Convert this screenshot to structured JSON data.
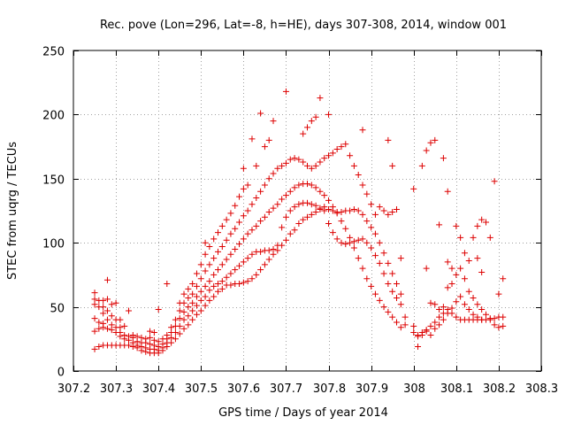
{
  "chart_data": {
    "type": "scatter",
    "title": "Rec. pove (Lon=296, Lat=-8, h=HE), days 307-308, 2014, window 001",
    "xlabel": "GPS time / Days of year 2014",
    "ylabel": "STEC from uqrg / TECUs",
    "xlim": [
      307.2,
      308.3
    ],
    "ylim": [
      0,
      250
    ],
    "xticks": [
      307.2,
      307.3,
      307.4,
      307.5,
      307.6,
      307.7,
      307.8,
      307.9,
      308.0,
      308.1,
      308.2,
      308.3
    ],
    "xtick_labels": [
      "307.2",
      "307.3",
      "307.4",
      "307.5",
      "307.6",
      "307.7",
      "307.8",
      "307.9",
      "308",
      "308.1",
      "308.2",
      "308.3"
    ],
    "yticks": [
      0,
      50,
      100,
      150,
      200,
      250
    ],
    "ytick_labels": [
      "0",
      "50",
      "100",
      "150",
      "200",
      "250"
    ],
    "grid": true,
    "marker": "+",
    "color": "#dd0000",
    "points": [
      [
        307.25,
        17
      ],
      [
        307.25,
        31
      ],
      [
        307.25,
        41
      ],
      [
        307.25,
        52
      ],
      [
        307.25,
        56
      ],
      [
        307.25,
        61
      ],
      [
        307.26,
        19
      ],
      [
        307.26,
        33
      ],
      [
        307.26,
        38
      ],
      [
        307.26,
        50
      ],
      [
        307.26,
        55
      ],
      [
        307.27,
        20
      ],
      [
        307.27,
        34
      ],
      [
        307.27,
        37
      ],
      [
        307.27,
        45
      ],
      [
        307.27,
        50
      ],
      [
        307.27,
        55
      ],
      [
        307.28,
        20
      ],
      [
        307.28,
        33
      ],
      [
        307.28,
        40
      ],
      [
        307.28,
        47
      ],
      [
        307.28,
        56
      ],
      [
        307.28,
        71
      ],
      [
        307.29,
        20
      ],
      [
        307.29,
        32
      ],
      [
        307.29,
        36
      ],
      [
        307.29,
        43
      ],
      [
        307.29,
        52
      ],
      [
        307.3,
        20
      ],
      [
        307.3,
        30
      ],
      [
        307.3,
        34
      ],
      [
        307.3,
        40
      ],
      [
        307.3,
        53
      ],
      [
        307.31,
        20
      ],
      [
        307.31,
        27
      ],
      [
        307.31,
        30
      ],
      [
        307.31,
        34
      ],
      [
        307.31,
        40
      ],
      [
        307.32,
        20
      ],
      [
        307.32,
        25
      ],
      [
        307.32,
        28
      ],
      [
        307.32,
        35
      ],
      [
        307.33,
        20
      ],
      [
        307.33,
        24
      ],
      [
        307.33,
        27
      ],
      [
        307.33,
        47
      ],
      [
        307.34,
        19
      ],
      [
        307.34,
        22
      ],
      [
        307.34,
        26
      ],
      [
        307.34,
        28
      ],
      [
        307.35,
        18
      ],
      [
        307.35,
        20
      ],
      [
        307.35,
        23
      ],
      [
        307.35,
        27
      ],
      [
        307.36,
        16
      ],
      [
        307.36,
        19
      ],
      [
        307.36,
        22
      ],
      [
        307.36,
        26
      ],
      [
        307.37,
        15
      ],
      [
        307.37,
        18
      ],
      [
        307.37,
        22
      ],
      [
        307.37,
        25
      ],
      [
        307.38,
        14
      ],
      [
        307.38,
        17
      ],
      [
        307.38,
        21
      ],
      [
        307.38,
        26
      ],
      [
        307.38,
        31
      ],
      [
        307.39,
        14
      ],
      [
        307.39,
        17
      ],
      [
        307.39,
        20
      ],
      [
        307.39,
        24
      ],
      [
        307.39,
        30
      ],
      [
        307.4,
        14
      ],
      [
        307.4,
        16
      ],
      [
        307.4,
        19
      ],
      [
        307.4,
        23
      ],
      [
        307.4,
        48
      ],
      [
        307.41,
        16
      ],
      [
        307.41,
        18
      ],
      [
        307.41,
        21
      ],
      [
        307.41,
        25
      ],
      [
        307.42,
        19
      ],
      [
        307.42,
        22
      ],
      [
        307.42,
        25
      ],
      [
        307.42,
        28
      ],
      [
        307.42,
        68
      ],
      [
        307.43,
        22
      ],
      [
        307.43,
        26
      ],
      [
        307.43,
        30
      ],
      [
        307.43,
        34
      ],
      [
        307.44,
        25
      ],
      [
        307.44,
        30
      ],
      [
        307.44,
        35
      ],
      [
        307.44,
        40
      ],
      [
        307.45,
        29
      ],
      [
        307.45,
        35
      ],
      [
        307.45,
        41
      ],
      [
        307.45,
        47
      ],
      [
        307.45,
        53
      ],
      [
        307.46,
        33
      ],
      [
        307.46,
        40
      ],
      [
        307.46,
        46
      ],
      [
        307.46,
        53
      ],
      [
        307.46,
        60
      ],
      [
        307.47,
        36
      ],
      [
        307.47,
        43
      ],
      [
        307.47,
        50
      ],
      [
        307.47,
        57
      ],
      [
        307.47,
        64
      ],
      [
        307.48,
        40
      ],
      [
        307.48,
        47
      ],
      [
        307.48,
        53
      ],
      [
        307.48,
        60
      ],
      [
        307.48,
        68
      ],
      [
        307.49,
        44
      ],
      [
        307.49,
        51
      ],
      [
        307.49,
        58
      ],
      [
        307.49,
        66
      ],
      [
        307.49,
        76
      ],
      [
        307.5,
        47
      ],
      [
        307.5,
        55
      ],
      [
        307.5,
        62
      ],
      [
        307.5,
        72
      ],
      [
        307.5,
        83
      ],
      [
        307.51,
        51
      ],
      [
        307.51,
        58
      ],
      [
        307.51,
        66
      ],
      [
        307.51,
        78
      ],
      [
        307.51,
        91
      ],
      [
        307.51,
        100
      ],
      [
        307.52,
        55
      ],
      [
        307.52,
        63
      ],
      [
        307.52,
        70
      ],
      [
        307.52,
        83
      ],
      [
        307.52,
        97
      ],
      [
        307.53,
        58
      ],
      [
        307.53,
        66
      ],
      [
        307.53,
        75
      ],
      [
        307.53,
        88
      ],
      [
        307.53,
        103
      ],
      [
        307.54,
        62
      ],
      [
        307.54,
        68
      ],
      [
        307.54,
        79
      ],
      [
        307.54,
        93
      ],
      [
        307.54,
        108
      ],
      [
        307.55,
        64
      ],
      [
        307.55,
        70
      ],
      [
        307.55,
        83
      ],
      [
        307.55,
        97
      ],
      [
        307.55,
        113
      ],
      [
        307.56,
        67
      ],
      [
        307.56,
        73
      ],
      [
        307.56,
        87
      ],
      [
        307.56,
        102
      ],
      [
        307.56,
        118
      ],
      [
        307.57,
        67
      ],
      [
        307.57,
        76
      ],
      [
        307.57,
        91
      ],
      [
        307.57,
        107
      ],
      [
        307.57,
        123
      ],
      [
        307.58,
        68
      ],
      [
        307.58,
        79
      ],
      [
        307.58,
        95
      ],
      [
        307.58,
        111
      ],
      [
        307.58,
        129
      ],
      [
        307.59,
        68
      ],
      [
        307.59,
        82
      ],
      [
        307.59,
        99
      ],
      [
        307.59,
        116
      ],
      [
        307.59,
        136
      ],
      [
        307.6,
        69
      ],
      [
        307.6,
        85
      ],
      [
        307.6,
        103
      ],
      [
        307.6,
        121
      ],
      [
        307.6,
        142
      ],
      [
        307.6,
        158
      ],
      [
        307.61,
        70
      ],
      [
        307.61,
        88
      ],
      [
        307.61,
        107
      ],
      [
        307.61,
        125
      ],
      [
        307.61,
        145
      ],
      [
        307.62,
        72
      ],
      [
        307.62,
        91
      ],
      [
        307.62,
        110
      ],
      [
        307.62,
        130
      ],
      [
        307.62,
        181
      ],
      [
        307.63,
        75
      ],
      [
        307.63,
        93
      ],
      [
        307.63,
        113
      ],
      [
        307.63,
        135
      ],
      [
        307.63,
        160
      ],
      [
        307.64,
        79
      ],
      [
        307.64,
        93
      ],
      [
        307.64,
        117
      ],
      [
        307.64,
        140
      ],
      [
        307.64,
        201
      ],
      [
        307.65,
        83
      ],
      [
        307.65,
        94
      ],
      [
        307.65,
        120
      ],
      [
        307.65,
        145
      ],
      [
        307.65,
        175
      ],
      [
        307.66,
        87
      ],
      [
        307.66,
        94
      ],
      [
        307.66,
        124
      ],
      [
        307.66,
        150
      ],
      [
        307.66,
        180
      ],
      [
        307.67,
        91
      ],
      [
        307.67,
        95
      ],
      [
        307.67,
        127
      ],
      [
        307.67,
        154
      ],
      [
        307.67,
        195
      ],
      [
        307.68,
        94
      ],
      [
        307.68,
        98
      ],
      [
        307.68,
        130
      ],
      [
        307.68,
        158
      ],
      [
        307.69,
        98
      ],
      [
        307.69,
        112
      ],
      [
        307.69,
        134
      ],
      [
        307.69,
        160
      ],
      [
        307.7,
        102
      ],
      [
        307.7,
        120
      ],
      [
        307.7,
        137
      ],
      [
        307.7,
        162
      ],
      [
        307.7,
        218
      ],
      [
        307.71,
        107
      ],
      [
        307.71,
        125
      ],
      [
        307.71,
        140
      ],
      [
        307.71,
        165
      ],
      [
        307.72,
        110
      ],
      [
        307.72,
        128
      ],
      [
        307.72,
        143
      ],
      [
        307.72,
        166
      ],
      [
        307.73,
        115
      ],
      [
        307.73,
        130
      ],
      [
        307.73,
        145
      ],
      [
        307.73,
        165
      ],
      [
        307.74,
        118
      ],
      [
        307.74,
        131
      ],
      [
        307.74,
        146
      ],
      [
        307.74,
        163
      ],
      [
        307.74,
        185
      ],
      [
        307.75,
        120
      ],
      [
        307.75,
        131
      ],
      [
        307.75,
        146
      ],
      [
        307.75,
        160
      ],
      [
        307.75,
        190
      ],
      [
        307.76,
        122
      ],
      [
        307.76,
        130
      ],
      [
        307.76,
        145
      ],
      [
        307.76,
        158
      ],
      [
        307.76,
        195
      ],
      [
        307.77,
        124
      ],
      [
        307.77,
        129
      ],
      [
        307.77,
        143
      ],
      [
        307.77,
        160
      ],
      [
        307.77,
        198
      ],
      [
        307.78,
        126
      ],
      [
        307.78,
        127
      ],
      [
        307.78,
        140
      ],
      [
        307.78,
        163
      ],
      [
        307.78,
        213
      ],
      [
        307.79,
        128
      ],
      [
        307.79,
        125
      ],
      [
        307.79,
        137
      ],
      [
        307.79,
        166
      ],
      [
        307.8,
        126
      ],
      [
        307.8,
        115
      ],
      [
        307.8,
        133
      ],
      [
        307.8,
        168
      ],
      [
        307.8,
        200
      ],
      [
        307.81,
        125
      ],
      [
        307.81,
        108
      ],
      [
        307.81,
        128
      ],
      [
        307.81,
        170
      ],
      [
        307.82,
        124
      ],
      [
        307.82,
        103
      ],
      [
        307.82,
        123
      ],
      [
        307.82,
        173
      ],
      [
        307.83,
        124
      ],
      [
        307.83,
        100
      ],
      [
        307.83,
        117
      ],
      [
        307.83,
        175
      ],
      [
        307.84,
        125
      ],
      [
        307.84,
        99
      ],
      [
        307.84,
        111
      ],
      [
        307.84,
        177
      ],
      [
        307.85,
        125
      ],
      [
        307.85,
        100
      ],
      [
        307.85,
        104
      ],
      [
        307.85,
        168
      ],
      [
        307.86,
        126
      ],
      [
        307.86,
        101
      ],
      [
        307.86,
        96
      ],
      [
        307.86,
        160
      ],
      [
        307.87,
        125
      ],
      [
        307.87,
        102
      ],
      [
        307.87,
        88
      ],
      [
        307.87,
        153
      ],
      [
        307.88,
        122
      ],
      [
        307.88,
        103
      ],
      [
        307.88,
        80
      ],
      [
        307.88,
        145
      ],
      [
        307.88,
        188
      ],
      [
        307.89,
        117
      ],
      [
        307.89,
        100
      ],
      [
        307.89,
        72
      ],
      [
        307.89,
        138
      ],
      [
        307.9,
        112
      ],
      [
        307.9,
        96
      ],
      [
        307.9,
        66
      ],
      [
        307.9,
        130
      ],
      [
        307.91,
        107
      ],
      [
        307.91,
        90
      ],
      [
        307.91,
        60
      ],
      [
        307.91,
        122
      ],
      [
        307.92,
        100
      ],
      [
        307.92,
        84
      ],
      [
        307.92,
        55
      ],
      [
        307.92,
        128
      ],
      [
        307.93,
        92
      ],
      [
        307.93,
        76
      ],
      [
        307.93,
        50
      ],
      [
        307.93,
        125
      ],
      [
        307.94,
        84
      ],
      [
        307.94,
        68
      ],
      [
        307.94,
        46
      ],
      [
        307.94,
        122
      ],
      [
        307.94,
        180
      ],
      [
        307.95,
        76
      ],
      [
        307.95,
        62
      ],
      [
        307.95,
        42
      ],
      [
        307.95,
        124
      ],
      [
        307.95,
        160
      ],
      [
        307.96,
        68
      ],
      [
        307.96,
        57
      ],
      [
        307.96,
        38
      ],
      [
        307.96,
        126
      ],
      [
        307.97,
        60
      ],
      [
        307.97,
        52
      ],
      [
        307.97,
        34
      ],
      [
        307.97,
        88
      ],
      [
        307.98,
        42
      ],
      [
        307.98,
        36
      ],
      [
        308.0,
        30
      ],
      [
        308.0,
        35
      ],
      [
        308.0,
        142
      ],
      [
        308.01,
        28
      ],
      [
        308.01,
        19
      ],
      [
        308.01,
        27
      ],
      [
        308.02,
        30
      ],
      [
        308.02,
        28
      ],
      [
        308.02,
        160
      ],
      [
        308.03,
        32
      ],
      [
        308.03,
        31
      ],
      [
        308.03,
        80
      ],
      [
        308.03,
        172
      ],
      [
        308.04,
        35
      ],
      [
        308.04,
        28
      ],
      [
        308.04,
        53
      ],
      [
        308.04,
        178
      ],
      [
        308.05,
        38
      ],
      [
        308.05,
        33
      ],
      [
        308.05,
        52
      ],
      [
        308.05,
        180
      ],
      [
        308.06,
        42
      ],
      [
        308.06,
        36
      ],
      [
        308.06,
        48
      ],
      [
        308.06,
        114
      ],
      [
        308.07,
        45
      ],
      [
        308.07,
        40
      ],
      [
        308.07,
        50
      ],
      [
        308.07,
        166
      ],
      [
        308.08,
        48
      ],
      [
        308.08,
        45
      ],
      [
        308.08,
        65
      ],
      [
        308.08,
        85
      ],
      [
        308.08,
        140
      ],
      [
        308.09,
        45
      ],
      [
        308.09,
        49
      ],
      [
        308.09,
        68
      ],
      [
        308.09,
        80
      ],
      [
        308.1,
        42
      ],
      [
        308.1,
        54
      ],
      [
        308.1,
        75
      ],
      [
        308.1,
        113
      ],
      [
        308.11,
        40
      ],
      [
        308.11,
        58
      ],
      [
        308.11,
        80
      ],
      [
        308.11,
        104
      ],
      [
        308.12,
        40
      ],
      [
        308.12,
        52
      ],
      [
        308.12,
        72
      ],
      [
        308.12,
        92
      ],
      [
        308.13,
        40
      ],
      [
        308.13,
        48
      ],
      [
        308.13,
        62
      ],
      [
        308.13,
        86
      ],
      [
        308.14,
        40
      ],
      [
        308.14,
        44
      ],
      [
        308.14,
        57
      ],
      [
        308.14,
        104
      ],
      [
        308.15,
        40
      ],
      [
        308.15,
        42
      ],
      [
        308.15,
        52
      ],
      [
        308.15,
        88
      ],
      [
        308.15,
        113
      ],
      [
        308.16,
        40
      ],
      [
        308.16,
        40
      ],
      [
        308.16,
        48
      ],
      [
        308.16,
        77
      ],
      [
        308.16,
        118
      ],
      [
        308.17,
        40
      ],
      [
        308.17,
        44
      ],
      [
        308.17,
        116
      ],
      [
        308.18,
        41
      ],
      [
        308.18,
        40
      ],
      [
        308.18,
        104
      ],
      [
        308.19,
        41
      ],
      [
        308.19,
        36
      ],
      [
        308.19,
        148
      ],
      [
        308.2,
        42
      ],
      [
        308.2,
        34
      ],
      [
        308.2,
        60
      ],
      [
        308.21,
        42
      ],
      [
        308.21,
        35
      ],
      [
        308.21,
        72
      ]
    ]
  }
}
